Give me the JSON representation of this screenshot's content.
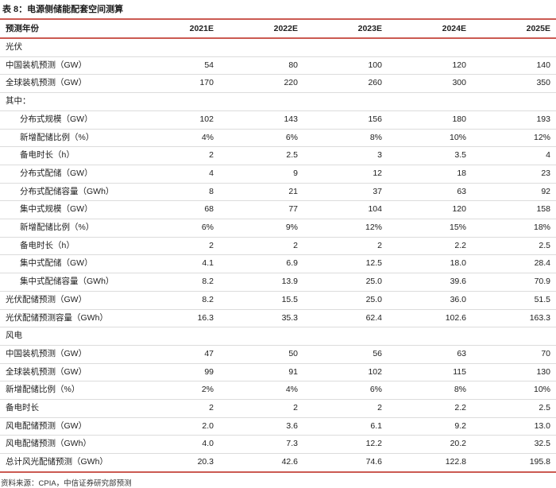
{
  "title": "表 8：电源侧储能配套空间测算",
  "table": {
    "header": {
      "label": "预测年份",
      "years": [
        "2021E",
        "2022E",
        "2023E",
        "2024E",
        "2025E"
      ]
    },
    "rows": [
      {
        "label": "光伏",
        "section": true,
        "indent": false,
        "values": [
          "",
          "",
          "",
          "",
          ""
        ]
      },
      {
        "label": "中国装机预测（GW）",
        "section": false,
        "indent": false,
        "values": [
          "54",
          "80",
          "100",
          "120",
          "140"
        ]
      },
      {
        "label": "全球装机预测（GW）",
        "section": false,
        "indent": false,
        "values": [
          "170",
          "220",
          "260",
          "300",
          "350"
        ]
      },
      {
        "label": "其中：",
        "section": false,
        "indent": false,
        "values": [
          "",
          "",
          "",
          "",
          ""
        ]
      },
      {
        "label": "分布式规模（GW）",
        "section": false,
        "indent": true,
        "values": [
          "102",
          "143",
          "156",
          "180",
          "193"
        ]
      },
      {
        "label": "新增配储比例（%）",
        "section": false,
        "indent": true,
        "values": [
          "4%",
          "6%",
          "8%",
          "10%",
          "12%"
        ]
      },
      {
        "label": "备电时长（h）",
        "section": false,
        "indent": true,
        "values": [
          "2",
          "2.5",
          "3",
          "3.5",
          "4"
        ]
      },
      {
        "label": "分布式配储（GW）",
        "section": false,
        "indent": true,
        "values": [
          "4",
          "9",
          "12",
          "18",
          "23"
        ]
      },
      {
        "label": "分布式配储容量（GWh）",
        "section": false,
        "indent": true,
        "values": [
          "8",
          "21",
          "37",
          "63",
          "92"
        ]
      },
      {
        "label": "集中式规模（GW）",
        "section": false,
        "indent": true,
        "values": [
          "68",
          "77",
          "104",
          "120",
          "158"
        ]
      },
      {
        "label": "新增配储比例（%）",
        "section": false,
        "indent": true,
        "values": [
          "6%",
          "9%",
          "12%",
          "15%",
          "18%"
        ]
      },
      {
        "label": "备电时长（h）",
        "section": false,
        "indent": true,
        "values": [
          "2",
          "2",
          "2",
          "2.2",
          "2.5"
        ]
      },
      {
        "label": "集中式配储（GW）",
        "section": false,
        "indent": true,
        "values": [
          "4.1",
          "6.9",
          "12.5",
          "18.0",
          "28.4"
        ]
      },
      {
        "label": "集中式配储容量（GWh）",
        "section": false,
        "indent": true,
        "values": [
          "8.2",
          "13.9",
          "25.0",
          "39.6",
          "70.9"
        ]
      },
      {
        "label": "光伏配储预测（GW）",
        "section": false,
        "indent": false,
        "values": [
          "8.2",
          "15.5",
          "25.0",
          "36.0",
          "51.5"
        ]
      },
      {
        "label": "光伏配储预测容量（GWh）",
        "section": false,
        "indent": false,
        "values": [
          "16.3",
          "35.3",
          "62.4",
          "102.6",
          "163.3"
        ]
      },
      {
        "label": "风电",
        "section": true,
        "indent": false,
        "values": [
          "",
          "",
          "",
          "",
          ""
        ]
      },
      {
        "label": "中国装机预测（GW）",
        "section": false,
        "indent": false,
        "values": [
          "47",
          "50",
          "56",
          "63",
          "70"
        ]
      },
      {
        "label": "全球装机预测（GW）",
        "section": false,
        "indent": false,
        "values": [
          "99",
          "91",
          "102",
          "115",
          "130"
        ]
      },
      {
        "label": "新增配储比例（%）",
        "section": false,
        "indent": false,
        "values": [
          "2%",
          "4%",
          "6%",
          "8%",
          "10%"
        ]
      },
      {
        "label": "备电时长",
        "section": false,
        "indent": false,
        "values": [
          "2",
          "2",
          "2",
          "2.2",
          "2.5"
        ]
      },
      {
        "label": "风电配储预测（GW）",
        "section": false,
        "indent": false,
        "values": [
          "2.0",
          "3.6",
          "6.1",
          "9.2",
          "13.0"
        ]
      },
      {
        "label": "风电配储预测（GWh）",
        "section": false,
        "indent": false,
        "values": [
          "4.0",
          "7.3",
          "12.2",
          "20.2",
          "32.5"
        ]
      },
      {
        "label": "总计风光配储预测（GWh）",
        "section": false,
        "indent": false,
        "values": [
          "20.3",
          "42.6",
          "74.6",
          "122.8",
          "195.8"
        ]
      }
    ]
  },
  "footer": {
    "source": "资料来源：CPIA，中信证券研究部预测"
  },
  "colors": {
    "accent_red": "#cb5a52",
    "row_separator": "#dcdcdc",
    "text": "#212121"
  }
}
